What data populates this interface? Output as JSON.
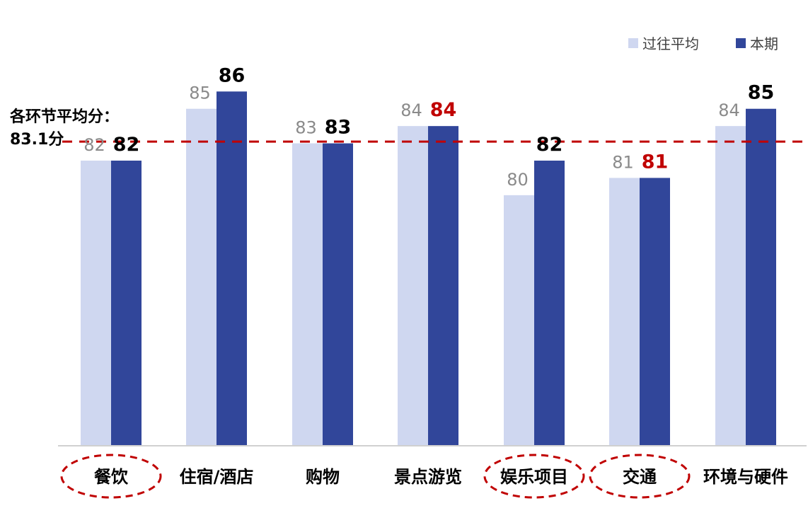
{
  "chart_data": {
    "type": "bar",
    "categories": [
      "餐饮",
      "住宿/酒店",
      "购物",
      "景点游览",
      "娱乐项目",
      "交通",
      "环境与硬件"
    ],
    "series": [
      {
        "name": "过往平均",
        "values": [
          82,
          85,
          83,
          84,
          80,
          81,
          84
        ],
        "color": "#cfd7f0"
      },
      {
        "name": "本期",
        "values": [
          82,
          86,
          83,
          84,
          82,
          81,
          85
        ],
        "color": "#31469a"
      }
    ],
    "current_label_colors": [
      "#000000",
      "#000000",
      "#000000",
      "#c00000",
      "#000000",
      "#c00000",
      "#000000"
    ],
    "highlighted_categories": [
      "餐饮",
      "娱乐项目",
      "交通"
    ],
    "reference_line": {
      "value": 83.1,
      "label_line1": "各环节平均分：",
      "label_line2": "83.1分",
      "color": "#c00000",
      "style": "dashed"
    },
    "legend": {
      "position": "top-right"
    },
    "ylim": [
      65.5,
      87.2
    ],
    "grid": false,
    "title": "",
    "xlabel": "",
    "ylabel": ""
  }
}
